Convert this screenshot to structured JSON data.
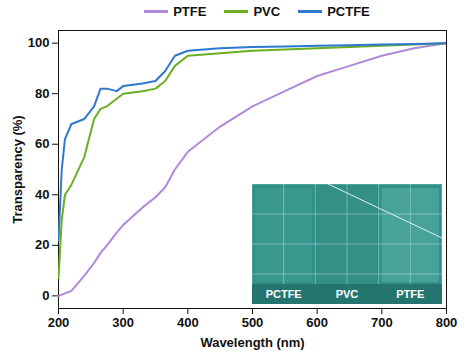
{
  "chart_data": {
    "type": "line",
    "x_label": "Wavelength (nm)",
    "y_label": "Transparency (%)",
    "x": [
      200,
      205,
      210,
      220,
      240,
      255,
      265,
      275,
      290,
      300,
      330,
      350,
      365,
      380,
      400,
      450,
      500,
      550,
      600,
      650,
      700,
      750,
      800
    ],
    "series": [
      {
        "name": "PTFE",
        "color": "#b08ad8",
        "values": [
          0,
          0.5,
          1,
          2,
          8,
          13,
          17,
          20,
          25,
          28,
          35,
          39,
          43,
          50,
          57,
          67,
          75,
          81,
          87,
          91,
          95,
          98,
          100
        ]
      },
      {
        "name": "PVC",
        "color": "#6aaf22",
        "values": [
          7,
          30,
          40,
          44,
          55,
          70,
          74,
          75,
          78,
          80,
          81,
          82,
          85,
          91,
          95,
          96,
          97,
          97.5,
          98,
          98.5,
          99,
          99.5,
          100
        ]
      },
      {
        "name": "PCTFE",
        "color": "#2f78d0",
        "values": [
          22,
          50,
          62,
          68,
          70,
          75,
          82,
          82,
          81,
          83,
          84,
          85,
          89,
          95,
          97,
          98,
          98.5,
          98.7,
          99,
          99.2,
          99.5,
          99.7,
          100
        ]
      }
    ],
    "xlim": [
      200,
      800
    ],
    "xticks": [
      200,
      300,
      400,
      500,
      600,
      700,
      800
    ],
    "ylim": [
      -5,
      105
    ],
    "yticks": [
      0,
      20,
      40,
      60,
      80,
      100
    ],
    "grid": false,
    "legend": "top",
    "annotations": [
      "PCTFE",
      "PVC",
      "PTFE"
    ]
  }
}
